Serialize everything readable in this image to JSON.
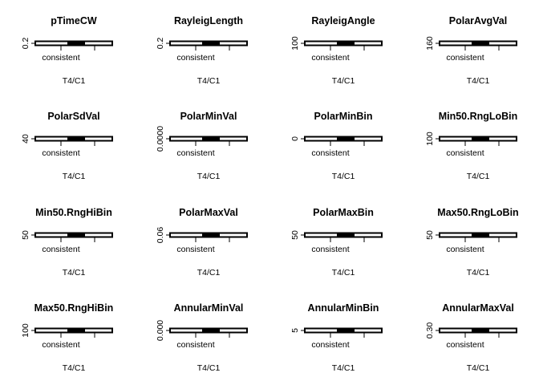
{
  "chart_data": [
    {
      "type": "box",
      "title": "pTimeCW",
      "xlabel": "T4/C1",
      "categories": [
        "consistent"
      ],
      "ytick_label": "0.2"
    },
    {
      "type": "box",
      "title": "RayleigLength",
      "xlabel": "T4/C1",
      "categories": [
        "consistent"
      ],
      "ytick_label": "0.2"
    },
    {
      "type": "box",
      "title": "RayleigAngle",
      "xlabel": "T4/C1",
      "categories": [
        "consistent"
      ],
      "ytick_label": "100"
    },
    {
      "type": "box",
      "title": "PolarAvgVal",
      "xlabel": "T4/C1",
      "categories": [
        "consistent"
      ],
      "ytick_label": "160"
    },
    {
      "type": "box",
      "title": "PolarSdVal",
      "xlabel": "T4/C1",
      "categories": [
        "consistent"
      ],
      "ytick_label": "40"
    },
    {
      "type": "box",
      "title": "PolarMinVal",
      "xlabel": "T4/C1",
      "categories": [
        "consistent"
      ],
      "ytick_label": "0.0000"
    },
    {
      "type": "box",
      "title": "PolarMinBin",
      "xlabel": "T4/C1",
      "categories": [
        "consistent"
      ],
      "ytick_label": "0"
    },
    {
      "type": "box",
      "title": "Min50.RngLoBin",
      "xlabel": "T4/C1",
      "categories": [
        "consistent"
      ],
      "ytick_label": "100"
    },
    {
      "type": "box",
      "title": "Min50.RngHiBin",
      "xlabel": "T4/C1",
      "categories": [
        "consistent"
      ],
      "ytick_label": "50"
    },
    {
      "type": "box",
      "title": "PolarMaxVal",
      "xlabel": "T4/C1",
      "categories": [
        "consistent"
      ],
      "ytick_label": "0.06"
    },
    {
      "type": "box",
      "title": "PolarMaxBin",
      "xlabel": "T4/C1",
      "categories": [
        "consistent"
      ],
      "ytick_label": "50"
    },
    {
      "type": "box",
      "title": "Max50.RngLoBin",
      "xlabel": "T4/C1",
      "categories": [
        "consistent"
      ],
      "ytick_label": "50"
    },
    {
      "type": "box",
      "title": "Max50.RngHiBin",
      "xlabel": "T4/C1",
      "categories": [
        "consistent"
      ],
      "ytick_label": "100"
    },
    {
      "type": "box",
      "title": "AnnularMinVal",
      "xlabel": "T4/C1",
      "categories": [
        "consistent"
      ],
      "ytick_label": "0.000"
    },
    {
      "type": "box",
      "title": "AnnularMinBin",
      "xlabel": "T4/C1",
      "categories": [
        "consistent"
      ],
      "ytick_label": "5"
    },
    {
      "type": "box",
      "title": "AnnularMaxVal",
      "xlabel": "T4/C1",
      "categories": [
        "consistent"
      ],
      "ytick_label": "0.30"
    }
  ]
}
